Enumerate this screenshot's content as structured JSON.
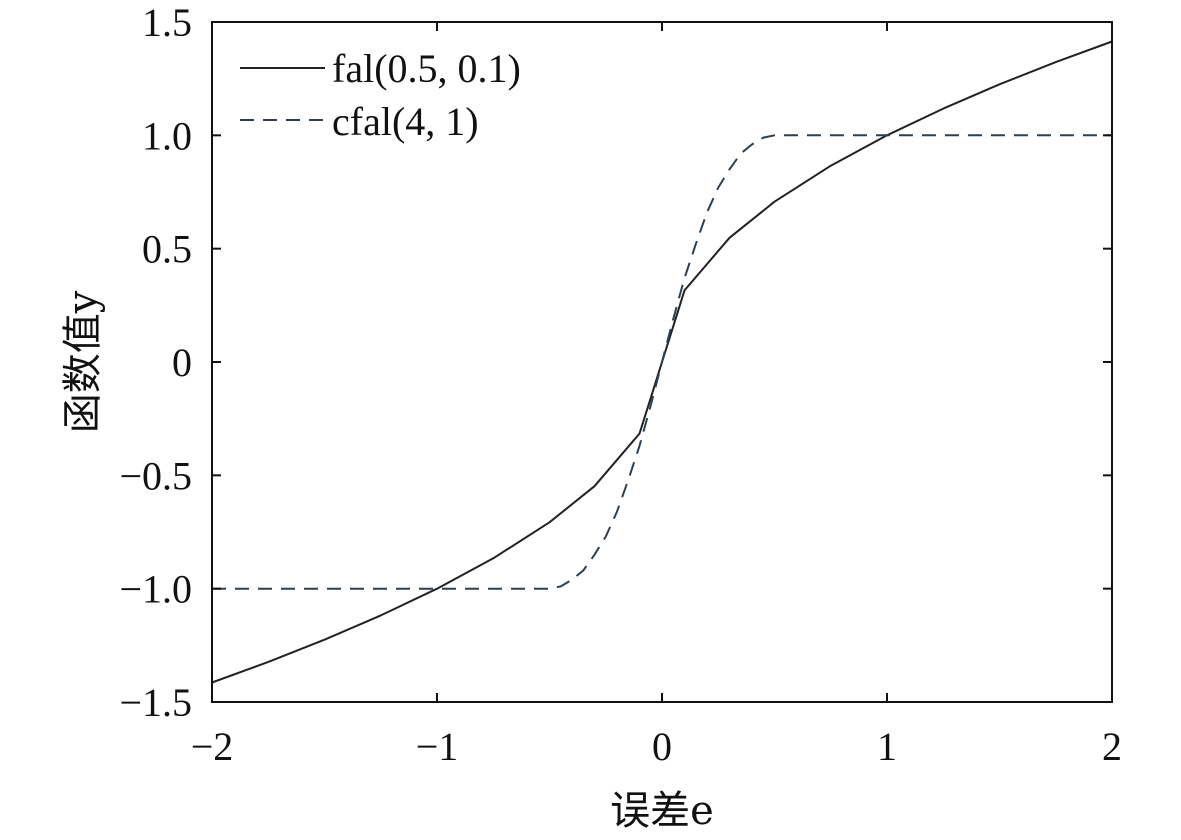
{
  "chart_data": {
    "type": "line",
    "title": "",
    "xlabel": "误差e",
    "ylabel": "函数值y",
    "xlim": [
      -2,
      2
    ],
    "ylim": [
      -1.5,
      1.5
    ],
    "xticks": [
      -2,
      -1,
      0,
      1,
      2
    ],
    "xtick_labels": [
      "−2",
      "−1",
      "0",
      "1",
      "2"
    ],
    "yticks": [
      -1.5,
      -1.0,
      -0.5,
      0,
      0.5,
      1.0,
      1.5
    ],
    "ytick_labels": [
      "−1.5",
      "−1.0",
      "−0.5",
      "0",
      "0.5",
      "1.0",
      "1.5"
    ],
    "grid": false,
    "legend_position": "top-left",
    "series": [
      {
        "name": "fal(0.5, 0.1)",
        "style": "solid",
        "color": "#222222",
        "x": [
          -2,
          -1.75,
          -1.5,
          -1.25,
          -1,
          -0.75,
          -0.5,
          -0.3,
          -0.1,
          -0.05,
          0,
          0.05,
          0.1,
          0.3,
          0.5,
          0.75,
          1,
          1.25,
          1.5,
          1.75,
          2
        ],
        "y": [
          -1.414,
          -1.323,
          -1.225,
          -1.118,
          -1,
          -0.866,
          -0.707,
          -0.548,
          -0.316,
          -0.158,
          0,
          0.158,
          0.316,
          0.548,
          0.707,
          0.866,
          1,
          1.118,
          1.225,
          1.323,
          1.414
        ]
      },
      {
        "name": "cfal(4, 1)",
        "style": "dashed",
        "color": "#2e3f4f",
        "x": [
          -2,
          -1.5,
          -1,
          -0.5,
          -0.45,
          -0.4,
          -0.35,
          -0.3,
          -0.25,
          -0.2,
          -0.15,
          -0.1,
          -0.05,
          0,
          0.05,
          0.1,
          0.15,
          0.2,
          0.25,
          0.3,
          0.35,
          0.4,
          0.45,
          0.5,
          1,
          1.5,
          2
        ],
        "y": [
          -1,
          -1,
          -1,
          -1,
          -0.99,
          -0.96,
          -0.92,
          -0.85,
          -0.77,
          -0.66,
          -0.52,
          -0.37,
          -0.19,
          0,
          0.19,
          0.37,
          0.52,
          0.66,
          0.77,
          0.85,
          0.92,
          0.96,
          0.99,
          1,
          1,
          1,
          1
        ]
      }
    ]
  }
}
